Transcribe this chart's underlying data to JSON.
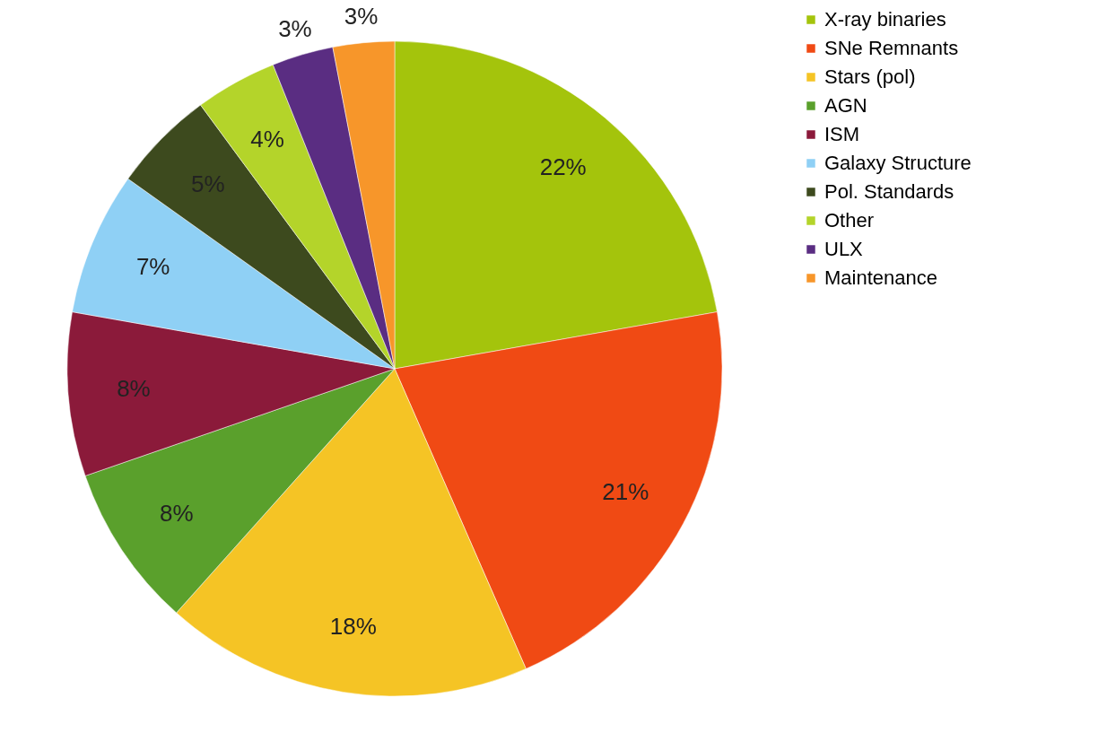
{
  "chart_data": {
    "type": "pie",
    "categories": [
      "X-ray binaries",
      "SNe Remnants",
      "Stars (pol)",
      "AGN",
      "ISM",
      "Galaxy Structure",
      "Pol. Standards",
      "Other",
      "ULX",
      "Maintenance"
    ],
    "values": [
      22,
      21,
      18,
      8,
      8,
      7,
      5,
      4,
      3,
      3
    ],
    "colors": [
      "#a4c40c",
      "#f04a14",
      "#f5c425",
      "#5aa02c",
      "#8b1a3a",
      "#8fd0f5",
      "#3d4a1e",
      "#b4d42a",
      "#5a2d82",
      "#f7962a"
    ],
    "value_labels": [
      "22%",
      "21%",
      "18%",
      "8%",
      "8%",
      "7%",
      "5%",
      "4%",
      "3%",
      "3%"
    ],
    "legend": "right"
  }
}
